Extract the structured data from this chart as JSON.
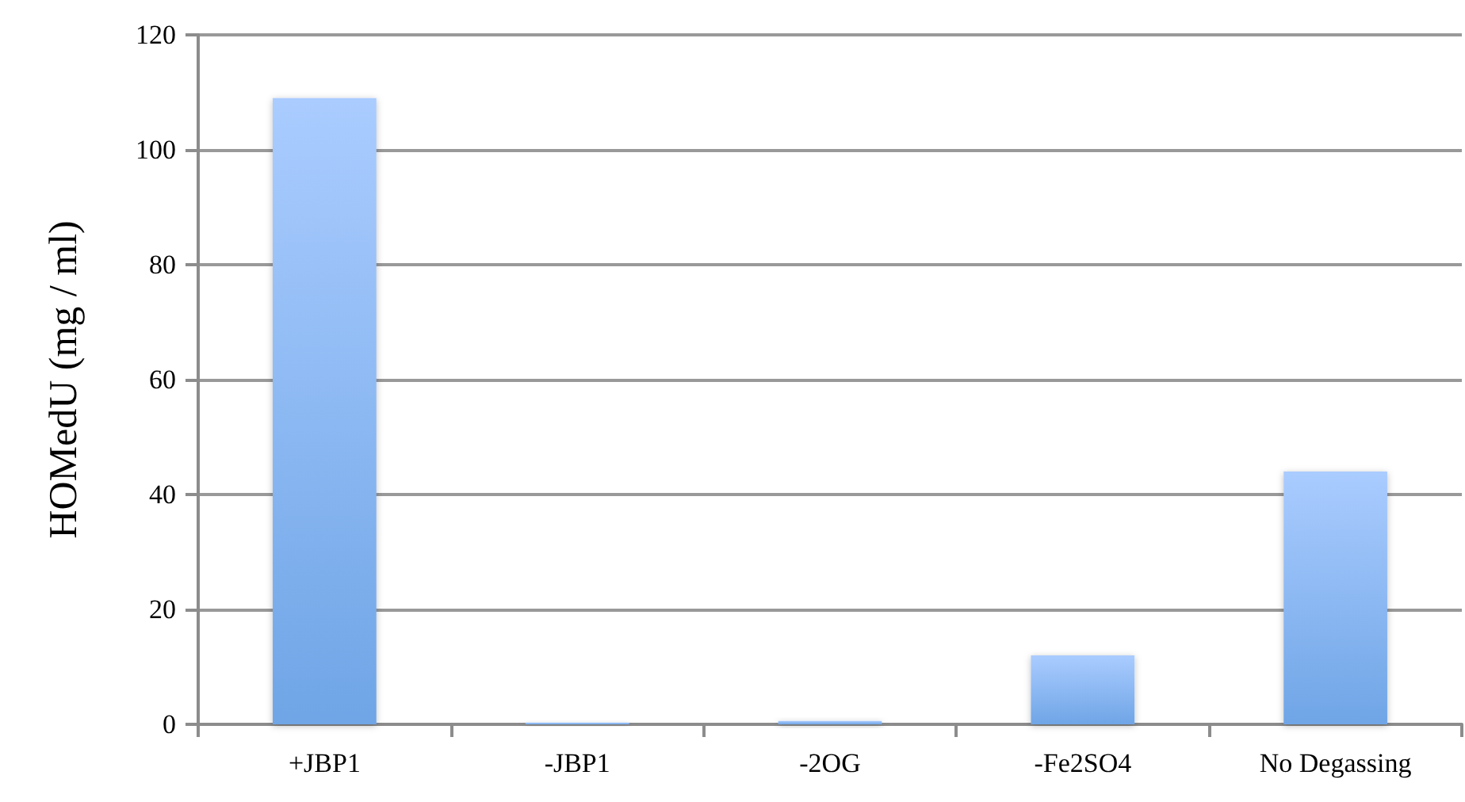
{
  "chart_data": {
    "type": "bar",
    "ylabel": "HOMedU (mg / ml)",
    "categories": [
      "+JBP1",
      "-JBP1",
      "-2OG",
      "-Fe2SO4",
      "No Degassing"
    ],
    "values": [
      109,
      0.3,
      0.6,
      12,
      44
    ],
    "color": "#6fa5e6",
    "ylim": [
      0,
      120
    ],
    "yticks": [
      0,
      20,
      40,
      60,
      80,
      100,
      120
    ],
    "grid": "y"
  }
}
